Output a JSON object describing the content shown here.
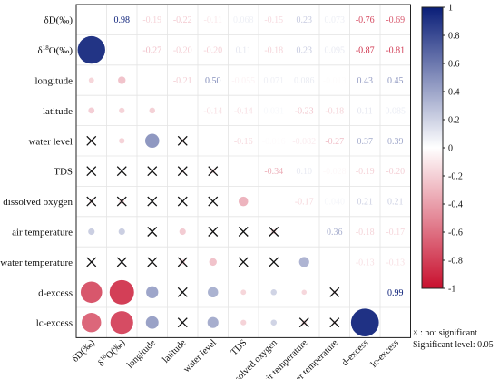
{
  "chart_data": {
    "type": "heatmap",
    "variables": [
      "δD(‰)",
      "δ18O(‰)",
      "longitude",
      "latitude",
      "water level",
      "TDS",
      "dissolved oxygen",
      "air temperature",
      "water temperature",
      "d-excess",
      "lc-excess"
    ],
    "upper_triangle": "correlation coefficients printed as numbers",
    "lower_triangle": "correlation coefficients drawn as circles sized by |r|",
    "matrix": [
      [
        1,
        0.98,
        -0.19,
        -0.22,
        -0.11,
        0.068,
        -0.15,
        0.23,
        0.073,
        -0.76,
        -0.69
      ],
      [
        0.98,
        1,
        -0.27,
        -0.2,
        -0.2,
        0.11,
        -0.18,
        0.23,
        0.095,
        -0.87,
        -0.81
      ],
      [
        -0.19,
        -0.27,
        1,
        -0.21,
        0.5,
        -0.055,
        0.071,
        0.086,
        -0.013,
        0.43,
        0.45
      ],
      [
        -0.22,
        -0.2,
        -0.21,
        1,
        -0.14,
        -0.14,
        0.031,
        -0.23,
        -0.18,
        0.11,
        0.085
      ],
      [
        -0.11,
        -0.2,
        0.5,
        -0.14,
        1,
        -0.16,
        -0.016,
        -0.082,
        -0.27,
        0.37,
        0.39
      ],
      [
        0.068,
        0.11,
        -0.055,
        -0.14,
        -0.16,
        1,
        -0.34,
        0.1,
        -0.028,
        -0.19,
        -0.2
      ],
      [
        -0.15,
        -0.18,
        0.071,
        0.031,
        -0.016,
        -0.34,
        1,
        -0.17,
        0.04,
        0.21,
        0.21
      ],
      [
        0.23,
        0.23,
        0.086,
        -0.23,
        -0.082,
        0.1,
        -0.17,
        1,
        0.36,
        -0.18,
        -0.17
      ],
      [
        0.073,
        0.095,
        -0.013,
        -0.18,
        -0.27,
        -0.028,
        0.04,
        0.36,
        1,
        -0.13,
        -0.13
      ],
      [
        -0.76,
        -0.87,
        0.43,
        0.11,
        0.37,
        -0.19,
        0.21,
        -0.18,
        -0.13,
        1,
        0.99
      ],
      [
        -0.69,
        -0.81,
        0.45,
        0.085,
        0.39,
        -0.2,
        0.21,
        -0.17,
        -0.13,
        0.99,
        1
      ]
    ],
    "upper_labels": [
      [
        "",
        "0.98",
        "-0.19",
        "-0.22",
        "-0.11",
        "0.068",
        "-0.15",
        "0.23",
        "0.073",
        "-0.76",
        "-0.69"
      ],
      [
        "",
        "",
        "-0.27",
        "-0.20",
        "-0.20",
        "0.11",
        "-0.18",
        "0.23",
        "0.095",
        "-0.87",
        "-0.81"
      ],
      [
        "",
        "",
        "",
        "-0.21",
        "0.50",
        "-0.055",
        "0.071",
        "0.086",
        "-0.013",
        "0.43",
        "0.45"
      ],
      [
        "",
        "",
        "",
        "",
        "-0.14",
        "-0.14",
        "0.031",
        "-0.23",
        "-0.18",
        "0.11",
        "0.085"
      ],
      [
        "",
        "",
        "",
        "",
        "",
        "-0.16",
        "-0.016",
        "-0.082",
        "-0.27",
        "0.37",
        "0.39"
      ],
      [
        "",
        "",
        "",
        "",
        "",
        "",
        "-0.34",
        "0.10",
        "-0.028",
        "-0.19",
        "-0.20"
      ],
      [
        "",
        "",
        "",
        "",
        "",
        "",
        "",
        "-0.17",
        "0.040",
        "0.21",
        "0.21"
      ],
      [
        "",
        "",
        "",
        "",
        "",
        "",
        "",
        "",
        "0.36",
        "-0.18",
        "-0.17"
      ],
      [
        "",
        "",
        "",
        "",
        "",
        "",
        "",
        "",
        "",
        "-0.13",
        "-0.13"
      ],
      [
        "",
        "",
        "",
        "",
        "",
        "",
        "",
        "",
        "",
        "",
        "0.99"
      ],
      [
        "",
        "",
        "",
        "",
        "",
        "",
        "",
        "",
        "",
        "",
        ""
      ]
    ],
    "not_significant_marks": [
      [
        4,
        0
      ],
      [
        4,
        3
      ],
      [
        5,
        0
      ],
      [
        5,
        1
      ],
      [
        5,
        2
      ],
      [
        5,
        3
      ],
      [
        5,
        4
      ],
      [
        6,
        0
      ],
      [
        6,
        1
      ],
      [
        6,
        2
      ],
      [
        6,
        3
      ],
      [
        6,
        4
      ],
      [
        7,
        2
      ],
      [
        7,
        4
      ],
      [
        7,
        5
      ],
      [
        7,
        6
      ],
      [
        8,
        0
      ],
      [
        8,
        1
      ],
      [
        8,
        2
      ],
      [
        8,
        3
      ],
      [
        8,
        5
      ],
      [
        8,
        6
      ],
      [
        9,
        3
      ],
      [
        9,
        8
      ],
      [
        10,
        3
      ],
      [
        10,
        7
      ],
      [
        10,
        8
      ]
    ],
    "colorbar": {
      "min": -1,
      "max": 1,
      "ticks": [
        "1",
        "0.8",
        "0.6",
        "0.4",
        "0.2",
        "0",
        "-0.2",
        "-0.4",
        "-0.6",
        "-0.8",
        "-1"
      ],
      "negative_color": "#c8102e",
      "positive_color": "#0a1e78",
      "neutral_color": "#ffffff"
    },
    "legend": {
      "mark": "×",
      "not_significant": ": not significant",
      "significance": "Significant level: 0.05"
    }
  }
}
